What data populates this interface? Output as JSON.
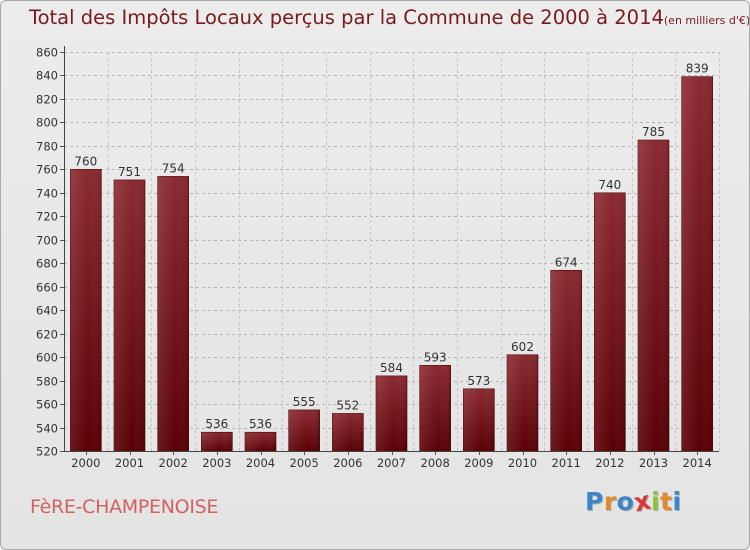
{
  "title": "Total des Impôts Locaux perçus par la Commune de 2000 à 2014",
  "unit": "(en milliers d'€)",
  "commune": "FèRE-CHAMPENOISE",
  "logo": {
    "letters": [
      "P",
      "r",
      "o",
      "x",
      "i",
      "t",
      "i"
    ],
    "colors": [
      "#3a86c8",
      "#e08a2a",
      "#3a86c8",
      "#d83838",
      "#8ac43a",
      "#e08a2a",
      "#3a86c8"
    ]
  },
  "colors": {
    "bar_dark": "#5a0004",
    "bar_light": "#8a2a30",
    "title": "#7a1a1a",
    "commune": "#d2625f"
  },
  "chart_data": {
    "type": "bar",
    "title": "Total des Impôts Locaux perçus par la Commune de 2000 à 2014",
    "xlabel": "",
    "ylabel": "en milliers d'€",
    "categories": [
      "2000",
      "2001",
      "2002",
      "2003",
      "2004",
      "2005",
      "2006",
      "2007",
      "2008",
      "2009",
      "2010",
      "2011",
      "2012",
      "2013",
      "2014"
    ],
    "values": [
      760,
      751,
      754,
      536,
      536,
      555,
      552,
      584,
      593,
      573,
      602,
      674,
      740,
      785,
      839
    ],
    "ylim": [
      520,
      860
    ],
    "yticks": [
      520,
      540,
      560,
      580,
      600,
      620,
      640,
      660,
      680,
      700,
      720,
      740,
      760,
      780,
      800,
      820,
      840,
      860
    ],
    "grid": true
  }
}
